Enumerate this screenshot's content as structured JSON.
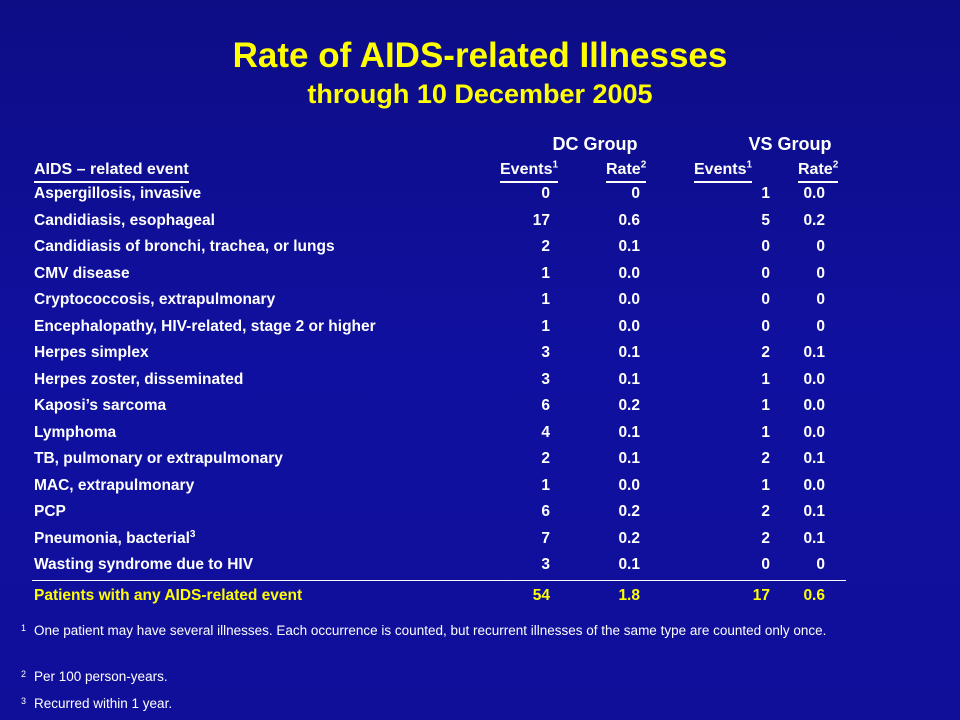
{
  "title": "Rate of AIDS-related Illnesses",
  "subtitle": "through 10 December 2005",
  "groups": {
    "dc": "DC Group",
    "vs": "VS Group"
  },
  "headers": {
    "event": "AIDS – related event",
    "events": "Events",
    "events_sup": "1",
    "rate": "Rate",
    "rate_sup": "2"
  },
  "rows": [
    {
      "name": "Aspergillosis, invasive",
      "sup": "",
      "dc_events": "0",
      "dc_rate": "0",
      "vs_events": "1",
      "vs_rate": "0.0"
    },
    {
      "name": "Candidiasis, esophageal",
      "sup": "",
      "dc_events": "17",
      "dc_rate": "0.6",
      "vs_events": "5",
      "vs_rate": "0.2"
    },
    {
      "name": "Candidiasis of bronchi, trachea, or lungs",
      "sup": "",
      "dc_events": "2",
      "dc_rate": "0.1",
      "vs_events": "0",
      "vs_rate": "0"
    },
    {
      "name": "CMV disease",
      "sup": "",
      "dc_events": "1",
      "dc_rate": "0.0",
      "vs_events": "0",
      "vs_rate": "0"
    },
    {
      "name": "Cryptococcosis, extrapulmonary",
      "sup": "",
      "dc_events": "1",
      "dc_rate": "0.0",
      "vs_events": "0",
      "vs_rate": "0"
    },
    {
      "name": "Encephalopathy, HIV-related, stage 2 or higher",
      "sup": "",
      "dc_events": "1",
      "dc_rate": "0.0",
      "vs_events": "0",
      "vs_rate": "0"
    },
    {
      "name": "Herpes simplex",
      "sup": "",
      "dc_events": "3",
      "dc_rate": "0.1",
      "vs_events": "2",
      "vs_rate": "0.1"
    },
    {
      "name": "Herpes zoster, disseminated",
      "sup": "",
      "dc_events": "3",
      "dc_rate": "0.1",
      "vs_events": "1",
      "vs_rate": "0.0"
    },
    {
      "name": "Kaposi’s sarcoma",
      "sup": "",
      "dc_events": "6",
      "dc_rate": "0.2",
      "vs_events": "1",
      "vs_rate": "0.0"
    },
    {
      "name": "Lymphoma",
      "sup": "",
      "dc_events": "4",
      "dc_rate": "0.1",
      "vs_events": "1",
      "vs_rate": "0.0"
    },
    {
      "name": "TB, pulmonary or extrapulmonary",
      "sup": "",
      "dc_events": "2",
      "dc_rate": "0.1",
      "vs_events": "2",
      "vs_rate": "0.1"
    },
    {
      "name": "MAC, extrapulmonary",
      "sup": "",
      "dc_events": "1",
      "dc_rate": "0.0",
      "vs_events": "1",
      "vs_rate": "0.0"
    },
    {
      "name": "PCP",
      "sup": "",
      "dc_events": "6",
      "dc_rate": "0.2",
      "vs_events": "2",
      "vs_rate": "0.1"
    },
    {
      "name": "Pneumonia, bacterial",
      "sup": "3",
      "dc_events": "7",
      "dc_rate": "0.2",
      "vs_events": "2",
      "vs_rate": "0.1"
    },
    {
      "name": "Wasting syndrome due to HIV",
      "sup": "",
      "dc_events": "3",
      "dc_rate": "0.1",
      "vs_events": "0",
      "vs_rate": "0"
    }
  ],
  "total": {
    "name": "Patients with any AIDS-related event",
    "dc_events": "54",
    "dc_rate": "1.8",
    "vs_events": "17",
    "vs_rate": "0.6"
  },
  "footnotes": [
    {
      "mark": "1",
      "text": "One patient may have several illnesses.  Each occurrence is counted, but recurrent illnesses of the same type are counted only once."
    },
    {
      "mark": "2",
      "text": "Per 100 person-years."
    },
    {
      "mark": "3",
      "text": "Recurred within 1 year."
    }
  ],
  "colors": {
    "background": "#1010a0",
    "title": "#ffff00",
    "text": "#ffffff",
    "total": "#ffff00"
  }
}
